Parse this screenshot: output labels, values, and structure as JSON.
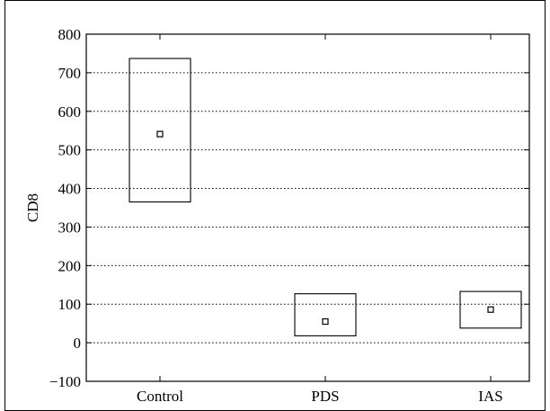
{
  "chart_data": {
    "type": "box",
    "title": "",
    "xlabel": "",
    "ylabel": "CD8",
    "ylim": [
      -100,
      800
    ],
    "yticks": [
      -100,
      0,
      100,
      200,
      300,
      400,
      500,
      600,
      700,
      800
    ],
    "grid": "horizontal dotted",
    "legend": "none",
    "categories": [
      "Control",
      "PDS",
      "IAS"
    ],
    "boxes": [
      {
        "category": "Control",
        "low": 365,
        "high": 737,
        "center": 541
      },
      {
        "category": "PDS",
        "low": 18,
        "high": 127,
        "center": 55
      },
      {
        "category": "IAS",
        "low": 38,
        "high": 133,
        "center": 86
      }
    ]
  }
}
